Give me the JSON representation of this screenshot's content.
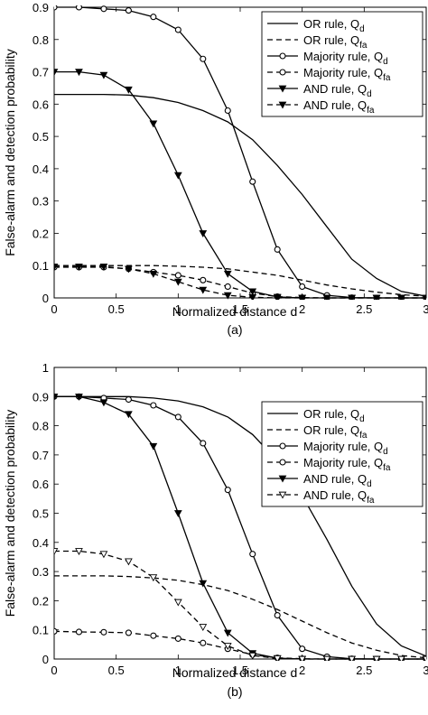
{
  "chart_data": [
    {
      "type": "line",
      "subfigure_label": "(a)",
      "xlabel": "Normalized distance d",
      "ylabel": "False-alarm and detection probability",
      "xlim": [
        0,
        3
      ],
      "ylim": [
        0,
        0.9
      ],
      "xticks": [
        0,
        0.5,
        1,
        1.5,
        2,
        2.5,
        3
      ],
      "xtick_labels": [
        "0",
        "0.5",
        "1",
        "1.5",
        "2",
        "2.5",
        "3"
      ],
      "yticks": [
        0,
        0.1,
        0.2,
        0.3,
        0.4,
        0.5,
        0.6,
        0.7,
        0.8,
        0.9
      ],
      "ytick_labels": [
        "0",
        "0.1",
        "0.2",
        "0.3",
        "0.4",
        "0.5",
        "0.6",
        "0.7",
        "0.8",
        "0.9"
      ],
      "grid": false,
      "legend_position": "top-right",
      "x": [
        0,
        0.2,
        0.4,
        0.6,
        0.8,
        1.0,
        1.2,
        1.4,
        1.6,
        1.8,
        2.0,
        2.2,
        2.4,
        2.6,
        2.8,
        3.0
      ],
      "series": [
        {
          "name": "OR rule, Q",
          "sub": "d",
          "style": "solid",
          "marker": "none",
          "values": [
            0.63,
            0.63,
            0.63,
            0.628,
            0.62,
            0.605,
            0.58,
            0.545,
            0.49,
            0.41,
            0.32,
            0.22,
            0.12,
            0.06,
            0.02,
            0.005
          ]
        },
        {
          "name": "OR rule, Q",
          "sub": "fa",
          "style": "dashed",
          "marker": "none",
          "values": [
            0.1,
            0.1,
            0.1,
            0.1,
            0.1,
            0.098,
            0.095,
            0.09,
            0.08,
            0.07,
            0.055,
            0.04,
            0.028,
            0.018,
            0.01,
            0.005
          ]
        },
        {
          "name": "Majority rule, Q",
          "sub": "d",
          "style": "solid",
          "marker": "circle",
          "values": [
            0.9,
            0.9,
            0.895,
            0.89,
            0.87,
            0.83,
            0.74,
            0.58,
            0.36,
            0.15,
            0.035,
            0.008,
            0.001,
            0,
            0,
            0
          ]
        },
        {
          "name": "Majority rule, Q",
          "sub": "fa",
          "style": "dashed",
          "marker": "circle",
          "values": [
            0.095,
            0.095,
            0.095,
            0.09,
            0.08,
            0.07,
            0.055,
            0.035,
            0.015,
            0.004,
            0.001,
            0,
            0,
            0,
            0,
            0
          ]
        },
        {
          "name": "AND rule, Q",
          "sub": "d",
          "style": "solid",
          "marker": "triangle-down",
          "values": [
            0.7,
            0.7,
            0.69,
            0.645,
            0.54,
            0.38,
            0.2,
            0.075,
            0.02,
            0.003,
            0,
            0,
            0,
            0,
            0,
            0
          ]
        },
        {
          "name": "AND rule, Q",
          "sub": "fa",
          "style": "dashed",
          "marker": "triangle-down",
          "values": [
            0.097,
            0.097,
            0.097,
            0.09,
            0.075,
            0.05,
            0.025,
            0.008,
            0.002,
            0,
            0,
            0,
            0,
            0,
            0,
            0
          ]
        }
      ]
    },
    {
      "type": "line",
      "subfigure_label": "(b)",
      "xlabel": "Normalized distance d",
      "ylabel": "False-alarm and detection probability",
      "xlim": [
        0,
        3
      ],
      "ylim": [
        0,
        1
      ],
      "xticks": [
        0,
        0.5,
        1,
        1.5,
        2,
        2.5,
        3
      ],
      "xtick_labels": [
        "0",
        "0.5",
        "1",
        "1.5",
        "2",
        "2.5",
        "3"
      ],
      "yticks": [
        0,
        0.1,
        0.2,
        0.3,
        0.4,
        0.5,
        0.6,
        0.7,
        0.8,
        0.9,
        1
      ],
      "ytick_labels": [
        "0",
        "0.1",
        "0.2",
        "0.3",
        "0.4",
        "0.5",
        "0.6",
        "0.7",
        "0.8",
        "0.9",
        "1"
      ],
      "grid": false,
      "legend_position": "top-right",
      "x": [
        0,
        0.2,
        0.4,
        0.6,
        0.8,
        1.0,
        1.2,
        1.4,
        1.6,
        1.8,
        2.0,
        2.2,
        2.4,
        2.6,
        2.8,
        3.0
      ],
      "series": [
        {
          "name": "OR rule, Q",
          "sub": "d",
          "style": "solid",
          "marker": "none",
          "values": [
            0.9,
            0.9,
            0.9,
            0.9,
            0.895,
            0.885,
            0.865,
            0.83,
            0.77,
            0.68,
            0.56,
            0.41,
            0.25,
            0.12,
            0.045,
            0.01
          ]
        },
        {
          "name": "OR rule, Q",
          "sub": "fa",
          "style": "dashed",
          "marker": "none",
          "values": [
            0.285,
            0.285,
            0.285,
            0.283,
            0.278,
            0.27,
            0.255,
            0.235,
            0.205,
            0.17,
            0.13,
            0.09,
            0.055,
            0.03,
            0.012,
            0.004
          ]
        },
        {
          "name": "Majority rule, Q",
          "sub": "d",
          "style": "solid",
          "marker": "circle",
          "values": [
            0.9,
            0.9,
            0.895,
            0.89,
            0.87,
            0.83,
            0.74,
            0.58,
            0.36,
            0.15,
            0.035,
            0.008,
            0.001,
            0,
            0,
            0
          ]
        },
        {
          "name": "Majority rule, Q",
          "sub": "fa",
          "style": "dashed",
          "marker": "circle",
          "values": [
            0.095,
            0.093,
            0.092,
            0.09,
            0.08,
            0.07,
            0.055,
            0.035,
            0.015,
            0.004,
            0.001,
            0,
            0,
            0,
            0,
            0
          ]
        },
        {
          "name": "AND rule, Q",
          "sub": "d",
          "style": "solid",
          "marker": "triangle-down",
          "values": [
            0.9,
            0.9,
            0.88,
            0.84,
            0.73,
            0.5,
            0.26,
            0.09,
            0.02,
            0.003,
            0,
            0,
            0,
            0,
            0,
            0
          ]
        },
        {
          "name": "AND rule, Q",
          "sub": "fa",
          "style": "dashed",
          "marker": "triangle-down",
          "values": [
            0.37,
            0.37,
            0.36,
            0.335,
            0.28,
            0.195,
            0.11,
            0.045,
            0.012,
            0.002,
            0,
            0,
            0,
            0,
            0,
            0
          ]
        }
      ]
    }
  ]
}
